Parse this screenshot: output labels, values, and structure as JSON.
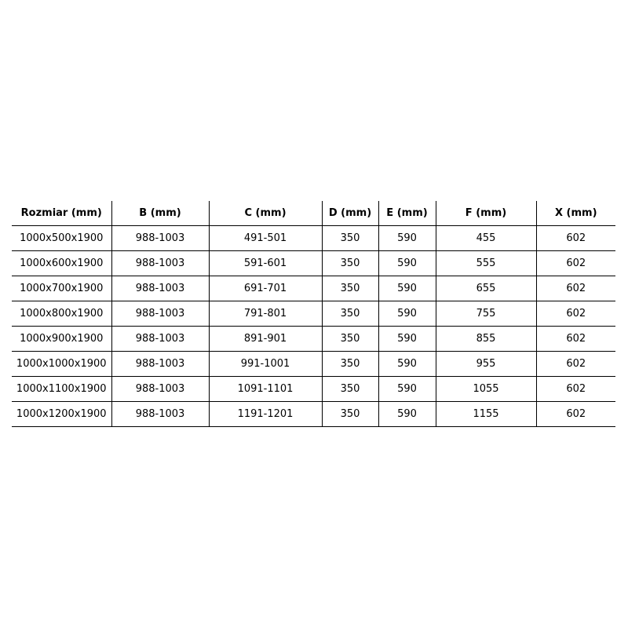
{
  "table": {
    "headers": [
      "Rozmiar (mm)",
      "B (mm)",
      "C (mm)",
      "D (mm)",
      "E (mm)",
      "F (mm)",
      "X (mm)"
    ],
    "rows": [
      [
        "1000x500x1900",
        "988-1003",
        "491-501",
        "350",
        "590",
        "455",
        "602"
      ],
      [
        "1000x600x1900",
        "988-1003",
        "591-601",
        "350",
        "590",
        "555",
        "602"
      ],
      [
        "1000x700x1900",
        "988-1003",
        "691-701",
        "350",
        "590",
        "655",
        "602"
      ],
      [
        "1000x800x1900",
        "988-1003",
        "791-801",
        "350",
        "590",
        "755",
        "602"
      ],
      [
        "1000x900x1900",
        "988-1003",
        "891-901",
        "350",
        "590",
        "855",
        "602"
      ],
      [
        "1000x1000x1900",
        "988-1003",
        "991-1001",
        "350",
        "590",
        "955",
        "602"
      ],
      [
        "1000x1100x1900",
        "988-1003",
        "1091-1101",
        "350",
        "590",
        "1055",
        "602"
      ],
      [
        "1000x1200x1900",
        "988-1003",
        "1191-1201",
        "350",
        "590",
        "1155",
        "602"
      ]
    ]
  }
}
